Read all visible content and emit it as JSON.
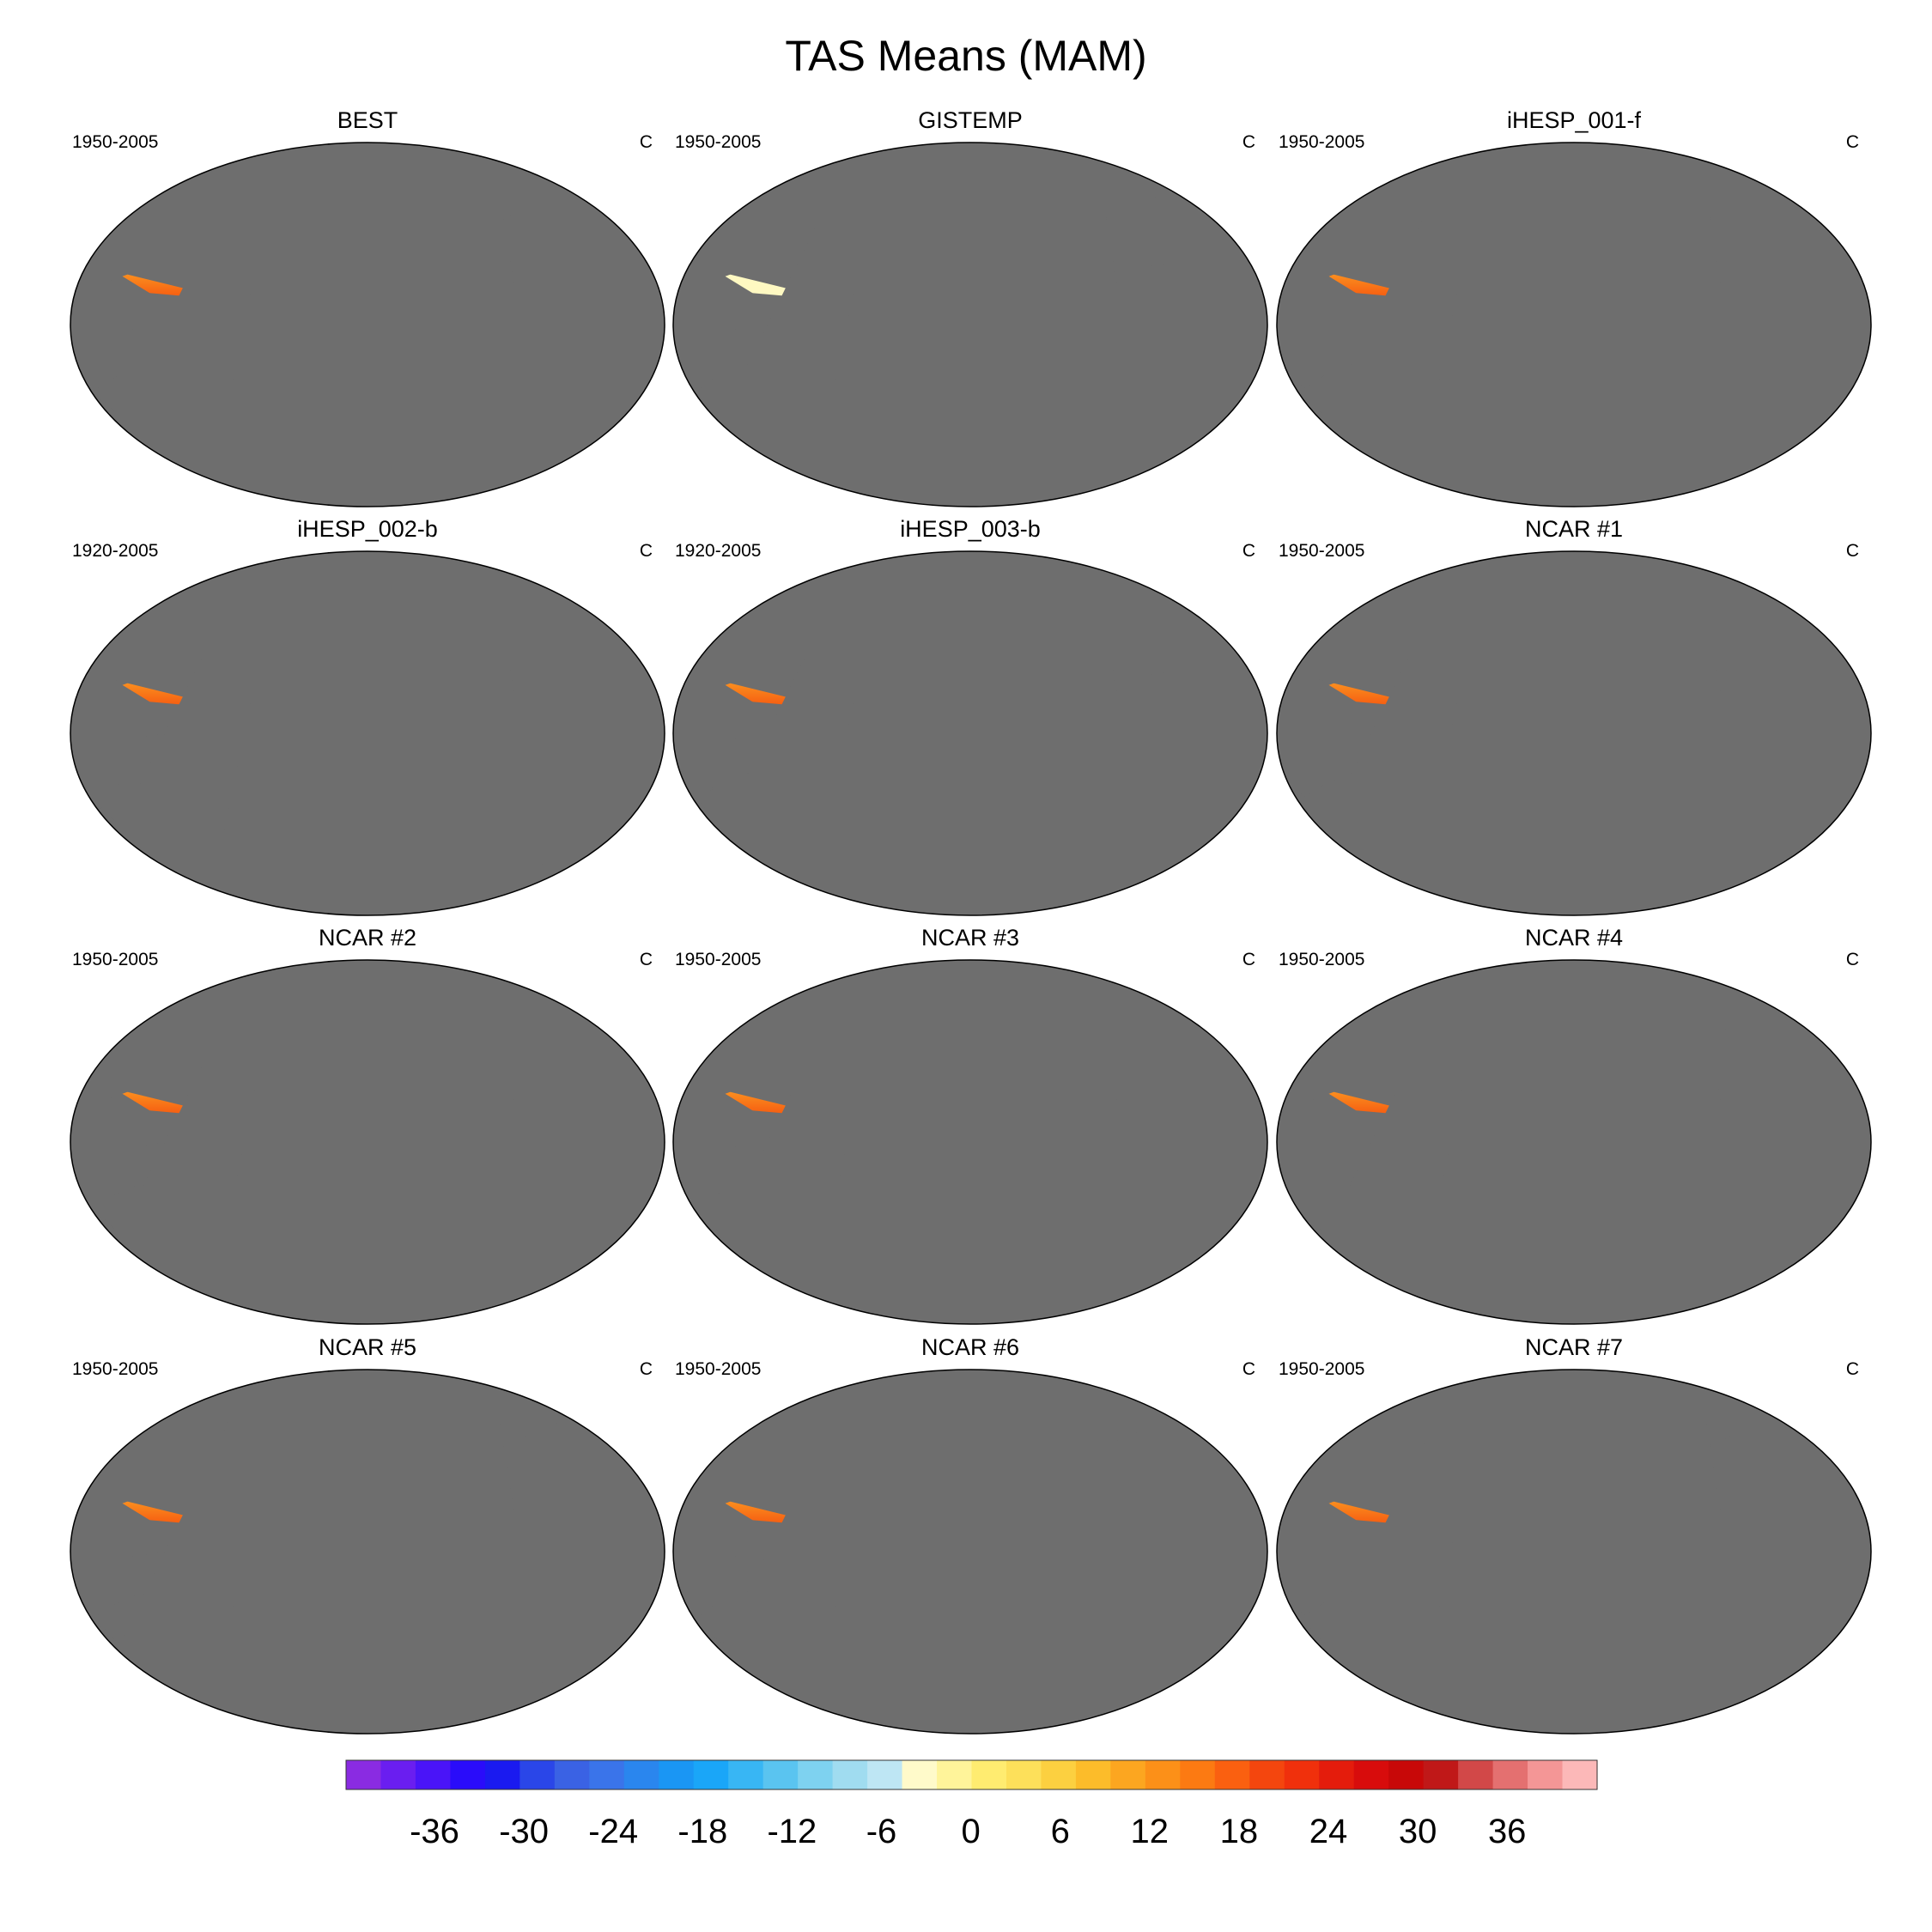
{
  "title": "TAS Means (MAM)",
  "panels": [
    {
      "title": "BEST",
      "period": "1950-2005",
      "units": "C",
      "style": "full"
    },
    {
      "title": "GISTEMP",
      "period": "1950-2005",
      "units": "C",
      "style": "pale"
    },
    {
      "title": "iHESP_001-f",
      "period": "1950-2005",
      "units": "C",
      "style": "full"
    },
    {
      "title": "iHESP_002-b",
      "period": "1920-2005",
      "units": "C",
      "style": "full"
    },
    {
      "title": "iHESP_003-b",
      "period": "1920-2005",
      "units": "C",
      "style": "full"
    },
    {
      "title": "NCAR #1",
      "period": "1950-2005",
      "units": "C",
      "style": "full"
    },
    {
      "title": "NCAR #2",
      "period": "1950-2005",
      "units": "C",
      "style": "full"
    },
    {
      "title": "NCAR #3",
      "period": "1950-2005",
      "units": "C",
      "style": "full"
    },
    {
      "title": "NCAR #4",
      "period": "1950-2005",
      "units": "C",
      "style": "full"
    },
    {
      "title": "NCAR #5",
      "period": "1950-2005",
      "units": "C",
      "style": "full"
    },
    {
      "title": "NCAR #6",
      "period": "1950-2005",
      "units": "C",
      "style": "full"
    },
    {
      "title": "NCAR #7",
      "period": "1950-2005",
      "units": "C",
      "style": "full"
    }
  ],
  "colorbar": {
    "ticks": [
      "-36",
      "-30",
      "-24",
      "-18",
      "-12",
      "-6",
      "0",
      "6",
      "12",
      "18",
      "24",
      "30",
      "36"
    ],
    "colors": [
      "#8a2be2",
      "#6a1ef0",
      "#4a14f8",
      "#2a0cfa",
      "#1a1af0",
      "#2a46e8",
      "#3a62e4",
      "#3a74ea",
      "#2a86ee",
      "#1a96f4",
      "#1aa6f8",
      "#38b6f4",
      "#5ac4f0",
      "#7ed2f0",
      "#a0dcf0",
      "#bee6f4",
      "#fffaca",
      "#fff49a",
      "#ffec70",
      "#fde05a",
      "#fcd040",
      "#fcbc2a",
      "#fca620",
      "#fc9018",
      "#fc7a12",
      "#fa6010",
      "#f4460e",
      "#f0300c",
      "#e41c0c",
      "#d80c0c",
      "#c80808",
      "#c01818",
      "#d24848",
      "#e47070",
      "#f49696",
      "#fcb8b8"
    ]
  }
}
